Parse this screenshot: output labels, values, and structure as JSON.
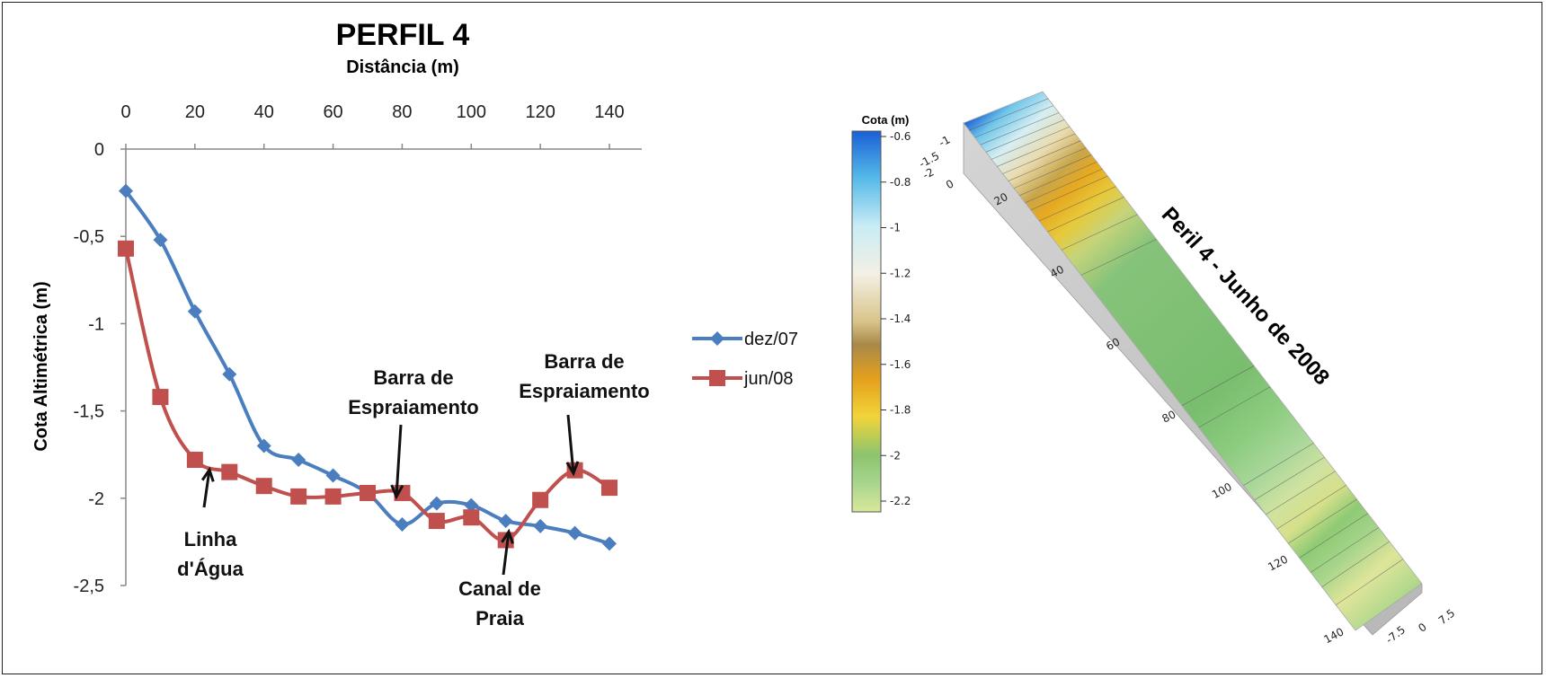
{
  "chart_data": [
    {
      "type": "line",
      "title": "PERFIL 4",
      "xlabel": "Distância (m)",
      "ylabel": "Cota Altimétrica (m)",
      "x_axis_position": "top",
      "xlim": [
        0,
        140
      ],
      "ylim": [
        -2.5,
        0
      ],
      "x_ticks": [
        "0",
        "20",
        "40",
        "60",
        "80",
        "100",
        "120",
        "140"
      ],
      "y_ticks": [
        "0",
        "-0,5",
        "-1",
        "-1,5",
        "-2",
        "-2,5"
      ],
      "x": [
        0,
        10,
        20,
        30,
        40,
        50,
        60,
        70,
        80,
        90,
        100,
        110,
        120,
        130,
        140
      ],
      "series": [
        {
          "name": "dez/07",
          "color": "#4a7ebf",
          "marker": "diamond",
          "values": [
            -0.24,
            -0.52,
            -0.93,
            -1.29,
            -1.7,
            -1.78,
            -1.87,
            -1.97,
            -2.15,
            -2.03,
            -2.04,
            -2.13,
            -2.16,
            -2.2,
            -2.26
          ]
        },
        {
          "name": "jun/08",
          "color": "#c0504d",
          "marker": "square",
          "values": [
            -0.57,
            -1.42,
            -1.78,
            -1.85,
            -1.93,
            -1.99,
            -1.99,
            -1.97,
            -1.97,
            -2.13,
            -2.11,
            -2.24,
            -2.01,
            -1.84,
            -1.94
          ]
        }
      ],
      "legend_position": "right",
      "annotations": [
        {
          "text": [
            "Linha",
            "d'Água"
          ],
          "points_to": [
            25,
            -1.8
          ]
        },
        {
          "text": [
            "Barra de",
            "Espraiamento"
          ],
          "points_to": [
            80,
            -1.98
          ]
        },
        {
          "text": [
            "Canal de",
            "Praia"
          ],
          "points_to": [
            110,
            -2.24
          ]
        },
        {
          "text": [
            "Barra de",
            "Espraiamento"
          ],
          "points_to": [
            130,
            -1.86
          ]
        }
      ],
      "grid": false
    },
    {
      "type": "heatmap",
      "title": "Peril 4 - Junho de 2008",
      "colorbar_title": "Cota (m)",
      "colorbar_ticks": [
        "-0.6",
        "-0.8",
        "-1",
        "-1.2",
        "-1.4",
        "-1.6",
        "-1.8",
        "-2",
        "-2.2"
      ],
      "colorbar_range": [
        -2.2,
        -0.6
      ],
      "distance_ticks": [
        "20",
        "40",
        "60",
        "80",
        "100",
        "120",
        "140"
      ],
      "width_ticks": [
        "-7.5",
        "0",
        "7.5"
      ],
      "z_ticks": [
        "-1",
        "-1.5",
        "-2"
      ],
      "corner_tick": "0",
      "elevation_bands": [
        {
          "d": 0,
          "z": -0.6
        },
        {
          "d": 3,
          "z": -0.8
        },
        {
          "d": 6,
          "z": -1.0
        },
        {
          "d": 10,
          "z": -1.2
        },
        {
          "d": 13,
          "z": -1.4
        },
        {
          "d": 17,
          "z": -1.6
        },
        {
          "d": 20,
          "z": -1.8
        },
        {
          "d": 24,
          "z": -1.9
        },
        {
          "d": 30,
          "z": -2.0
        },
        {
          "d": 60,
          "z": -2.05
        },
        {
          "d": 80,
          "z": -2.0
        },
        {
          "d": 88,
          "z": -2.15
        },
        {
          "d": 100,
          "z": -2.1
        },
        {
          "d": 108,
          "z": -1.85
        },
        {
          "d": 114,
          "z": -2.05
        },
        {
          "d": 122,
          "z": -2.0
        },
        {
          "d": 130,
          "z": -1.9
        },
        {
          "d": 140,
          "z": -2.05
        }
      ]
    }
  ]
}
